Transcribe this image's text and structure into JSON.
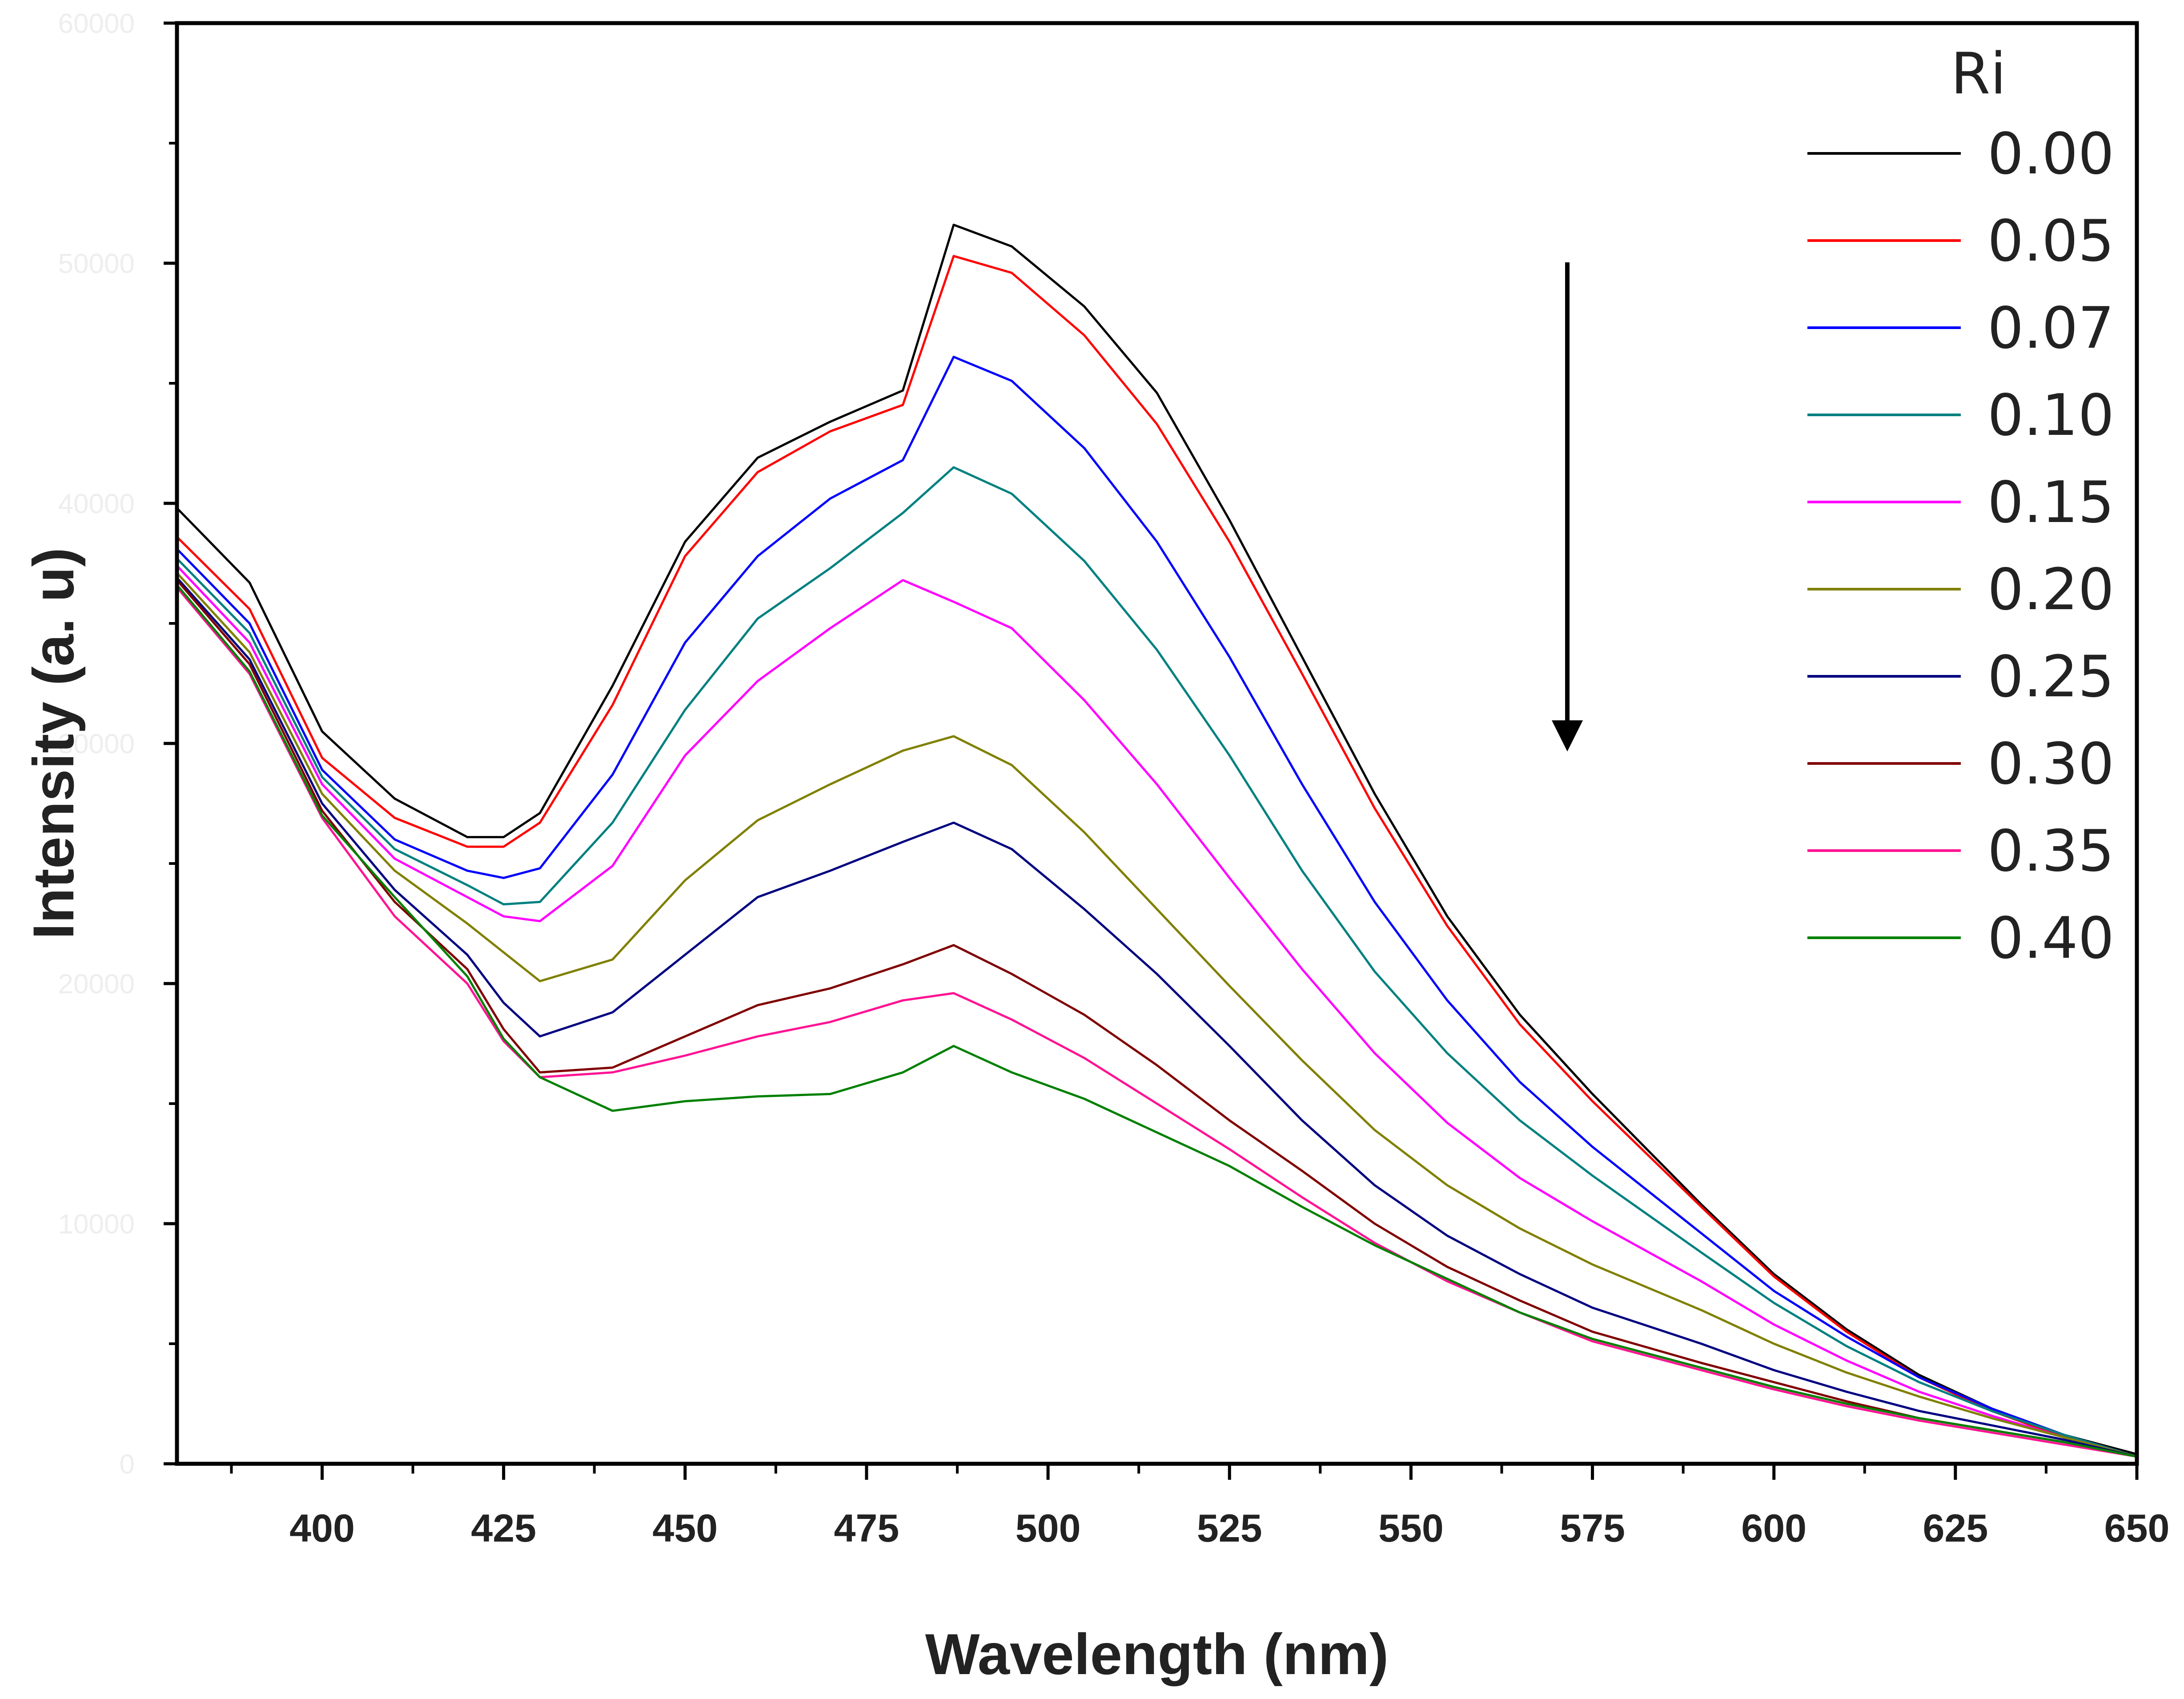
{
  "chart_data": {
    "type": "line",
    "xlabel": "Wavelength (nm)",
    "ylabel": "Intensity (a. u)",
    "xlim": [
      380,
      650
    ],
    "ylim": [
      0,
      60000
    ],
    "xticks": [
      400,
      425,
      450,
      475,
      500,
      525,
      550,
      575,
      600,
      625,
      650
    ],
    "yticks": [
      0,
      10000,
      20000,
      30000,
      40000,
      50000,
      60000
    ],
    "ytick_labels": [
      "0",
      "10000",
      "20000",
      "30000",
      "40000",
      "50000",
      "60000"
    ],
    "legend_title": "Ri",
    "legend_position": "top-right",
    "annotation": "downward arrow indicating intensity decreases with increasing Ri",
    "x": [
      380,
      390,
      400,
      410,
      420,
      425,
      430,
      440,
      450,
      460,
      470,
      480,
      487,
      495,
      505,
      515,
      525,
      535,
      545,
      555,
      565,
      575,
      590,
      600,
      610,
      620,
      630,
      640,
      650
    ],
    "series": [
      {
        "name": "0.00",
        "color": "#000000",
        "values": [
          39800,
          36700,
          30500,
          27700,
          26100,
          26100,
          27100,
          32400,
          38400,
          41900,
          43400,
          44700,
          51600,
          50700,
          48200,
          44600,
          39300,
          33600,
          27900,
          22800,
          18700,
          15400,
          10800,
          7900,
          5600,
          3700,
          2300,
          1200,
          400
        ]
      },
      {
        "name": "0.05",
        "color": "#ff0000",
        "values": [
          38600,
          35600,
          29400,
          26900,
          25700,
          25700,
          26700,
          31600,
          37800,
          41300,
          43000,
          44100,
          50300,
          49600,
          47000,
          43300,
          38400,
          32900,
          27300,
          22400,
          18300,
          15100,
          10700,
          7800,
          5500,
          3600,
          2200,
          1100,
          300
        ]
      },
      {
        "name": "0.07",
        "color": "#0000ff",
        "values": [
          38100,
          35000,
          28900,
          26000,
          24700,
          24400,
          24800,
          28700,
          34200,
          37800,
          40200,
          41800,
          46100,
          45100,
          42300,
          38400,
          33600,
          28300,
          23400,
          19300,
          15900,
          13200,
          9600,
          7200,
          5300,
          3600,
          2300,
          1200,
          300
        ]
      },
      {
        "name": "0.10",
        "color": "#008080",
        "values": [
          37700,
          34600,
          28600,
          25600,
          24100,
          23300,
          23400,
          26700,
          31400,
          35200,
          37300,
          39600,
          41500,
          40400,
          37600,
          33900,
          29500,
          24700,
          20500,
          17100,
          14300,
          12000,
          8800,
          6700,
          4900,
          3400,
          2200,
          1200,
          300
        ]
      },
      {
        "name": "0.15",
        "color": "#ff00ff",
        "values": [
          37400,
          34200,
          28300,
          25200,
          23600,
          22800,
          22600,
          24900,
          29500,
          32600,
          34800,
          36800,
          35900,
          34800,
          31800,
          28300,
          24400,
          20600,
          17100,
          14200,
          11900,
          10100,
          7600,
          5800,
          4300,
          3000,
          2000,
          1100,
          300
        ]
      },
      {
        "name": "0.20",
        "color": "#808000",
        "values": [
          37100,
          33800,
          27900,
          24700,
          22500,
          21300,
          20100,
          21000,
          24300,
          26800,
          28300,
          29700,
          30300,
          29100,
          26300,
          23100,
          19900,
          16800,
          13900,
          11600,
          9800,
          8300,
          6400,
          5000,
          3800,
          2800,
          1900,
          1100,
          300
        ]
      },
      {
        "name": "0.25",
        "color": "#000080",
        "values": [
          36900,
          33500,
          27500,
          23900,
          21200,
          19200,
          17800,
          18800,
          21200,
          23600,
          24700,
          25900,
          26700,
          25600,
          23100,
          20400,
          17400,
          14300,
          11600,
          9500,
          7900,
          6500,
          5000,
          3900,
          3000,
          2200,
          1600,
          1000,
          300
        ]
      },
      {
        "name": "0.30",
        "color": "#800000",
        "values": [
          36800,
          33300,
          27200,
          23400,
          20600,
          18100,
          16300,
          16500,
          17800,
          19100,
          19800,
          20800,
          21600,
          20400,
          18700,
          16600,
          14300,
          12200,
          10000,
          8200,
          6800,
          5500,
          4200,
          3400,
          2600,
          1900,
          1400,
          900,
          300
        ]
      },
      {
        "name": "0.35",
        "color": "#ff1493",
        "values": [
          36500,
          32900,
          26900,
          22800,
          20000,
          17600,
          16100,
          16300,
          17000,
          17800,
          18400,
          19300,
          19600,
          18500,
          16900,
          15000,
          13100,
          11100,
          9200,
          7600,
          6300,
          5100,
          3900,
          3100,
          2400,
          1800,
          1300,
          800,
          300
        ]
      },
      {
        "name": "0.40",
        "color": "#008000",
        "values": [
          36600,
          33000,
          27000,
          23600,
          20300,
          17700,
          16100,
          14700,
          15100,
          15300,
          15400,
          16300,
          17400,
          16300,
          15200,
          13800,
          12400,
          10700,
          9100,
          7700,
          6300,
          5200,
          4000,
          3200,
          2500,
          1900,
          1400,
          900,
          300
        ]
      }
    ]
  }
}
